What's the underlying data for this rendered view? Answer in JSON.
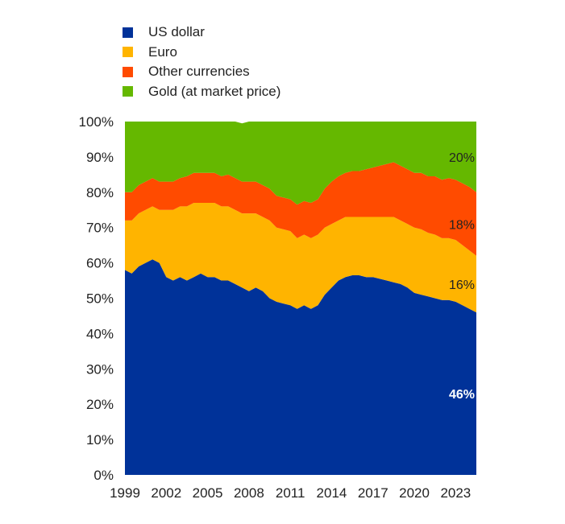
{
  "chart_data": {
    "type": "area",
    "stacked": true,
    "title": "",
    "xlabel": "",
    "ylabel": "",
    "ylim": [
      0,
      100
    ],
    "x_range": [
      1999,
      2024.5
    ],
    "y_ticks": [
      "0%",
      "10%",
      "20%",
      "30%",
      "40%",
      "50%",
      "60%",
      "70%",
      "80%",
      "90%",
      "100%"
    ],
    "x_ticks": [
      "1999",
      "2002",
      "2005",
      "2008",
      "2011",
      "2014",
      "2017",
      "2020",
      "2023"
    ],
    "legend_position": "top-left",
    "grid": false,
    "x": [
      1999,
      1999.5,
      2000,
      2000.5,
      2001,
      2001.5,
      2002,
      2002.5,
      2003,
      2003.5,
      2004,
      2004.5,
      2005,
      2005.5,
      2006,
      2006.5,
      2007,
      2007.5,
      2008,
      2008.5,
      2009,
      2009.5,
      2010,
      2010.5,
      2011,
      2011.5,
      2012,
      2012.5,
      2013,
      2013.5,
      2014,
      2014.5,
      2015,
      2015.5,
      2016,
      2016.5,
      2017,
      2017.5,
      2018,
      2018.5,
      2019,
      2019.5,
      2020,
      2020.5,
      2021,
      2021.5,
      2022,
      2022.5,
      2023,
      2023.5,
      2024,
      2024.5
    ],
    "series": [
      {
        "name": "US dollar",
        "color": "#003299",
        "values": [
          58,
          57,
          59,
          60,
          61,
          60,
          56,
          55,
          56,
          55,
          56,
          57,
          56,
          56,
          55,
          55,
          54,
          53,
          52,
          53,
          52,
          50,
          49,
          48.5,
          48,
          47,
          48,
          47,
          48,
          51,
          53,
          55,
          56,
          56.5,
          56.5,
          56,
          56,
          55.5,
          55,
          54.5,
          54,
          53,
          51.5,
          51,
          50.5,
          50,
          49.5,
          49.5,
          49,
          48,
          47,
          46
        ]
      },
      {
        "name": "Euro",
        "color": "#ffb400",
        "values": [
          14,
          15,
          15,
          15,
          15,
          15,
          19,
          20,
          20,
          21,
          21,
          20,
          21,
          21,
          21,
          21,
          21,
          21,
          22,
          21,
          21,
          22,
          21,
          21,
          21,
          20,
          20,
          20,
          20,
          19,
          18,
          17,
          17,
          16.5,
          16.5,
          17,
          17,
          17.5,
          18,
          18.5,
          18,
          18,
          18.5,
          18.5,
          18,
          18,
          17.5,
          17.5,
          17.5,
          17,
          16.5,
          16
        ]
      },
      {
        "name": "Other currencies",
        "color": "#ff4b00",
        "values": [
          8,
          8,
          8,
          8,
          8,
          8,
          8,
          8,
          8,
          8.5,
          8.5,
          8.5,
          8.5,
          8.5,
          8.5,
          9,
          9,
          9,
          9,
          9,
          9,
          9,
          9,
          9,
          9,
          9.5,
          9.5,
          10,
          10,
          11,
          12,
          12.5,
          12.5,
          13,
          13,
          13.5,
          14,
          14.5,
          15,
          15.5,
          15.5,
          15.5,
          15.5,
          16,
          16,
          16.5,
          16.5,
          17,
          17,
          17.5,
          18,
          18
        ]
      },
      {
        "name": "Gold (at market price)",
        "color": "#65b800",
        "values": [
          20,
          20,
          18,
          17,
          16,
          17,
          17,
          17,
          16,
          15.5,
          14.5,
          14.5,
          14.5,
          14.5,
          15.5,
          15,
          16,
          16.5,
          17,
          17,
          18,
          19,
          21,
          21.5,
          22,
          23.5,
          22.5,
          23,
          22,
          19,
          17,
          15.5,
          14.5,
          14,
          14,
          13.5,
          13,
          12.5,
          12,
          11.5,
          12.5,
          13.5,
          14.5,
          14.5,
          15.5,
          15.5,
          16.5,
          16,
          16.5,
          17.5,
          18.5,
          20
        ]
      }
    ],
    "end_labels": [
      {
        "series": "Gold (at market price)",
        "text": "20%",
        "color": "#222222"
      },
      {
        "series": "Other currencies",
        "text": "18%",
        "color": "#222222"
      },
      {
        "series": "Euro",
        "text": "16%",
        "color": "#222222"
      },
      {
        "series": "US dollar",
        "text": "46%",
        "color": "#ffffff"
      }
    ]
  }
}
